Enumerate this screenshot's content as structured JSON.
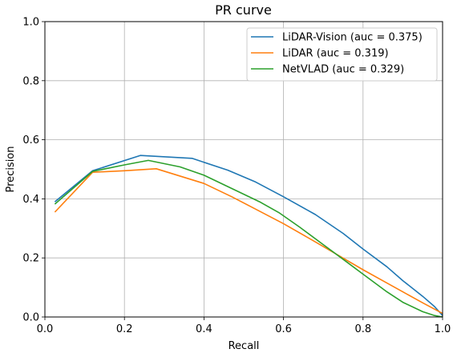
{
  "chart_data": {
    "type": "line",
    "title": "PR curve",
    "xlabel": "Recall",
    "ylabel": "Precision",
    "xlim": [
      0.0,
      1.0
    ],
    "ylim": [
      0.0,
      1.0
    ],
    "xticks": [
      "0.0",
      "0.2",
      "0.4",
      "0.6",
      "0.8",
      "1.0"
    ],
    "yticks": [
      "0.0",
      "0.2",
      "0.4",
      "0.6",
      "0.8",
      "1.0"
    ],
    "grid": true,
    "legend_position": "top-right",
    "series": [
      {
        "name": "LiDAR-Vision (auc = 0.375)",
        "color": "#1f77b4",
        "points": [
          [
            0.025,
            0.39
          ],
          [
            0.12,
            0.495
          ],
          [
            0.24,
            0.547
          ],
          [
            0.37,
            0.537
          ],
          [
            0.46,
            0.497
          ],
          [
            0.53,
            0.457
          ],
          [
            0.6,
            0.407
          ],
          [
            0.68,
            0.347
          ],
          [
            0.75,
            0.283
          ],
          [
            0.8,
            0.23
          ],
          [
            0.86,
            0.17
          ],
          [
            0.9,
            0.123
          ],
          [
            0.95,
            0.07
          ],
          [
            0.98,
            0.035
          ],
          [
            1.0,
            0.005
          ]
        ]
      },
      {
        "name": "LiDAR (auc = 0.319)",
        "color": "#ff7f0e",
        "points": [
          [
            0.025,
            0.355
          ],
          [
            0.12,
            0.49
          ],
          [
            0.2,
            0.495
          ],
          [
            0.28,
            0.502
          ],
          [
            0.4,
            0.452
          ],
          [
            0.47,
            0.407
          ],
          [
            0.53,
            0.365
          ],
          [
            0.6,
            0.316
          ],
          [
            0.67,
            0.262
          ],
          [
            0.73,
            0.215
          ],
          [
            0.8,
            0.16
          ],
          [
            0.86,
            0.115
          ],
          [
            0.9,
            0.085
          ],
          [
            0.95,
            0.048
          ],
          [
            1.0,
            0.012
          ]
        ]
      },
      {
        "name": "NetVLAD (auc = 0.329)",
        "color": "#2ca02c",
        "points": [
          [
            0.025,
            0.382
          ],
          [
            0.12,
            0.493
          ],
          [
            0.2,
            0.515
          ],
          [
            0.26,
            0.53
          ],
          [
            0.34,
            0.508
          ],
          [
            0.4,
            0.48
          ],
          [
            0.47,
            0.435
          ],
          [
            0.54,
            0.39
          ],
          [
            0.59,
            0.352
          ],
          [
            0.64,
            0.305
          ],
          [
            0.7,
            0.245
          ],
          [
            0.76,
            0.185
          ],
          [
            0.8,
            0.145
          ],
          [
            0.86,
            0.085
          ],
          [
            0.9,
            0.05
          ],
          [
            0.95,
            0.018
          ],
          [
            0.98,
            0.005
          ],
          [
            1.0,
            0.0
          ]
        ]
      }
    ]
  }
}
